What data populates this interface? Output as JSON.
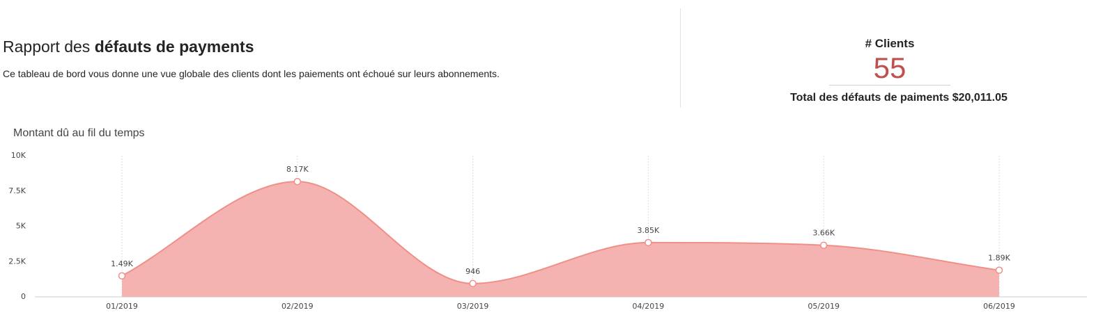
{
  "header": {
    "title_plain": "Rapport des",
    "title_bold": "défauts de payments",
    "description": "Ce tableau de bord vous donne une vue globale des clients dont les paiements ont échoué sur leurs abonnements."
  },
  "kpi": {
    "label": "# Clients",
    "value": 55,
    "total_label": "Total des défauts de paiments",
    "total_value": "$20,011.05"
  },
  "chart_data": {
    "type": "area",
    "title": "Montant dû au fil du temps",
    "categories": [
      "01/2019",
      "02/2019",
      "03/2019",
      "04/2019",
      "05/2019",
      "06/2019"
    ],
    "values": [
      1490,
      8170,
      946,
      3850,
      3660,
      1890
    ],
    "value_labels": [
      "1.49K",
      "8.17K",
      "946",
      "3.85K",
      "3.66K",
      "1.89K"
    ],
    "color": "#f4b3b0",
    "line_color": "#ef8f88",
    "ylim": [
      0,
      10000
    ],
    "yticks": [
      0,
      {
        "value": 2500,
        "label": "2.5K"
      },
      {
        "value": 5000,
        "label": "5K"
      },
      {
        "value": 7500,
        "label": "7.5K"
      },
      {
        "value": 10000,
        "label": "10K"
      }
    ]
  }
}
